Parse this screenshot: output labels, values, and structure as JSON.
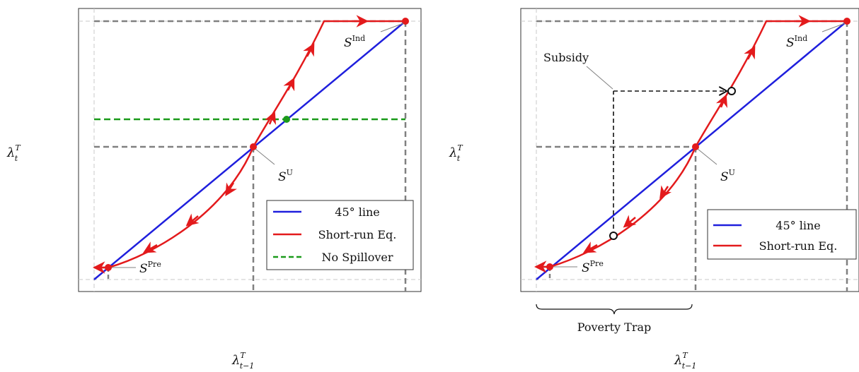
{
  "colors": {
    "diagonal": "#1f1fdd",
    "short_run": "#e31a1c",
    "no_spillover": "#1a9a1a",
    "guide": "#808080",
    "frame": "#333333"
  },
  "left_panel": {
    "y_label_base": "λ",
    "y_label_sup": "T",
    "y_label_sub": "t",
    "x_label_base": "λ",
    "x_label_sup": "T",
    "x_label_sub": "t−1",
    "labels": {
      "pre_base": "S",
      "pre_sup": "Pre",
      "u_base": "S",
      "u_sup": "U",
      "ind_base": "S",
      "ind_sup": "Ind"
    },
    "legend": [
      "45° line",
      "Short-run Eq.",
      "No Spillover"
    ]
  },
  "right_panel": {
    "y_label_base": "λ",
    "y_label_sup": "T",
    "y_label_sub": "t",
    "x_label_base": "λ",
    "x_label_sup": "T",
    "x_label_sub": "t−1",
    "labels": {
      "pre_base": "S",
      "pre_sup": "Pre",
      "u_base": "S",
      "u_sup": "U",
      "ind_base": "S",
      "ind_sup": "Ind"
    },
    "subsidy_label": "Subsidy",
    "brace_label": "Poverty Trap",
    "legend": [
      "45° line",
      "Short-run Eq."
    ]
  }
}
